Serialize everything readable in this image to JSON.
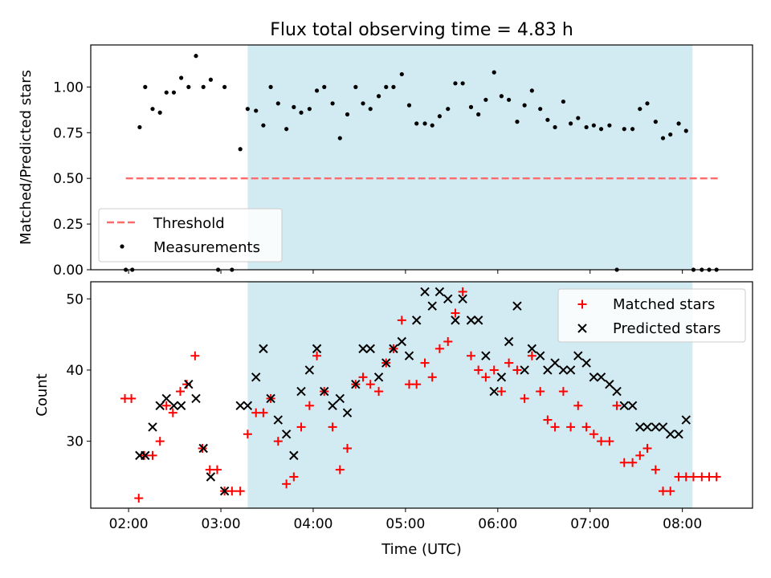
{
  "chart_data": {
    "type": "scatter",
    "title": "Flux total observing time = 4.83 h",
    "xlabel": "Time (UTC)",
    "colors": {
      "shade": "#add8e6",
      "threshold": "#ff6b6b",
      "measurement": "#000000",
      "matched": "#ff0000",
      "predicted": "#000000"
    },
    "x_ticks": [
      {
        "t": 2.0,
        "label": "02:00"
      },
      {
        "t": 3.0,
        "label": "03:00"
      },
      {
        "t": 4.0,
        "label": "04:00"
      },
      {
        "t": 5.0,
        "label": "05:00"
      },
      {
        "t": 6.0,
        "label": "06:00"
      },
      {
        "t": 7.0,
        "label": "07:00"
      },
      {
        "t": 8.0,
        "label": "08:00"
      }
    ],
    "xlim": [
      1.59,
      8.76
    ],
    "shaded_span": {
      "x_start": 3.29,
      "x_end": 8.11
    },
    "ratio_panel": {
      "ylabel": "Matched/Predicted stars",
      "ylim": [
        0,
        1.23
      ],
      "y_ticks": [
        "0.00",
        "0.25",
        "0.50",
        "0.75",
        "1.00"
      ],
      "y_tick_values": [
        0,
        0.25,
        0.5,
        0.75,
        1.0
      ],
      "legend": {
        "placement": "lower-left",
        "threshold_label": "Threshold",
        "measurements_label": "Measurements"
      },
      "threshold": {
        "value": 0.5,
        "x_start": 1.97,
        "x_end": 8.4
      },
      "measurements": [
        [
          1.97,
          0.0
        ],
        [
          2.04,
          0.0
        ],
        [
          2.12,
          0.78
        ],
        [
          2.18,
          1.0
        ],
        [
          2.26,
          0.88
        ],
        [
          2.34,
          0.86
        ],
        [
          2.41,
          0.97
        ],
        [
          2.49,
          0.97
        ],
        [
          2.57,
          1.05
        ],
        [
          2.65,
          1.0
        ],
        [
          2.73,
          1.17
        ],
        [
          2.81,
          1.0
        ],
        [
          2.89,
          1.04
        ],
        [
          2.97,
          0.0
        ],
        [
          3.04,
          1.0
        ],
        [
          3.12,
          0.0
        ],
        [
          3.21,
          0.66
        ],
        [
          3.29,
          0.88
        ],
        [
          3.38,
          0.87
        ],
        [
          3.46,
          0.79
        ],
        [
          3.54,
          1.0
        ],
        [
          3.62,
          0.91
        ],
        [
          3.71,
          0.77
        ],
        [
          3.79,
          0.89
        ],
        [
          3.87,
          0.86
        ],
        [
          3.96,
          0.88
        ],
        [
          4.04,
          0.98
        ],
        [
          4.12,
          1.0
        ],
        [
          4.21,
          0.91
        ],
        [
          4.29,
          0.72
        ],
        [
          4.37,
          0.85
        ],
        [
          4.46,
          1.0
        ],
        [
          4.54,
          0.91
        ],
        [
          4.62,
          0.88
        ],
        [
          4.71,
          0.95
        ],
        [
          4.79,
          1.0
        ],
        [
          4.87,
          1.0
        ],
        [
          4.96,
          1.07
        ],
        [
          5.04,
          0.9
        ],
        [
          5.12,
          0.8
        ],
        [
          5.21,
          0.8
        ],
        [
          5.29,
          0.79
        ],
        [
          5.37,
          0.84
        ],
        [
          5.46,
          0.88
        ],
        [
          5.54,
          1.02
        ],
        [
          5.62,
          1.02
        ],
        [
          5.71,
          0.89
        ],
        [
          5.79,
          0.85
        ],
        [
          5.87,
          0.93
        ],
        [
          5.96,
          1.08
        ],
        [
          6.04,
          0.95
        ],
        [
          6.12,
          0.93
        ],
        [
          6.21,
          0.81
        ],
        [
          6.29,
          0.9
        ],
        [
          6.37,
          0.98
        ],
        [
          6.46,
          0.88
        ],
        [
          6.54,
          0.82
        ],
        [
          6.62,
          0.78
        ],
        [
          6.71,
          0.92
        ],
        [
          6.79,
          0.8
        ],
        [
          6.87,
          0.83
        ],
        [
          6.96,
          0.78
        ],
        [
          7.04,
          0.79
        ],
        [
          7.12,
          0.77
        ],
        [
          7.21,
          0.79
        ],
        [
          7.29,
          0.0
        ],
        [
          7.37,
          0.77
        ],
        [
          7.46,
          0.77
        ],
        [
          7.54,
          0.88
        ],
        [
          7.62,
          0.91
        ],
        [
          7.71,
          0.81
        ],
        [
          7.79,
          0.72
        ],
        [
          7.87,
          0.74
        ],
        [
          7.96,
          0.8
        ],
        [
          8.04,
          0.76
        ],
        [
          8.12,
          0.0
        ],
        [
          8.21,
          0.0
        ],
        [
          8.29,
          0.0
        ],
        [
          8.37,
          0.0
        ]
      ]
    },
    "count_panel": {
      "ylabel": "Count",
      "ylim": [
        20.6,
        52.4
      ],
      "y_ticks": [
        "30",
        "40",
        "50"
      ],
      "y_tick_values": [
        30,
        40,
        50
      ],
      "legend": {
        "placement": "upper-right",
        "matched_label": "Matched stars",
        "predicted_label": "Predicted stars"
      },
      "matched": [
        [
          1.96,
          36
        ],
        [
          2.03,
          36
        ],
        [
          2.11,
          22
        ],
        [
          2.17,
          28
        ],
        [
          2.26,
          28
        ],
        [
          2.34,
          30
        ],
        [
          2.41,
          35
        ],
        [
          2.48,
          34
        ],
        [
          2.56,
          37
        ],
        [
          2.63,
          38
        ],
        [
          2.72,
          42
        ],
        [
          2.8,
          29
        ],
        [
          2.88,
          26
        ],
        [
          2.96,
          26
        ],
        [
          3.04,
          23
        ],
        [
          3.12,
          23
        ],
        [
          3.21,
          23
        ],
        [
          3.29,
          31
        ],
        [
          3.38,
          34
        ],
        [
          3.46,
          34
        ],
        [
          3.54,
          36
        ],
        [
          3.62,
          30
        ],
        [
          3.71,
          24
        ],
        [
          3.79,
          25
        ],
        [
          3.87,
          32
        ],
        [
          3.96,
          35
        ],
        [
          4.04,
          42
        ],
        [
          4.12,
          37
        ],
        [
          4.21,
          32
        ],
        [
          4.29,
          26
        ],
        [
          4.37,
          29
        ],
        [
          4.46,
          38
        ],
        [
          4.54,
          39
        ],
        [
          4.62,
          38
        ],
        [
          4.71,
          37
        ],
        [
          4.79,
          41
        ],
        [
          4.87,
          43
        ],
        [
          4.96,
          47
        ],
        [
          5.04,
          38
        ],
        [
          5.12,
          38
        ],
        [
          5.21,
          41
        ],
        [
          5.29,
          39
        ],
        [
          5.37,
          43
        ],
        [
          5.46,
          44
        ],
        [
          5.54,
          48
        ],
        [
          5.62,
          51
        ],
        [
          5.71,
          42
        ],
        [
          5.79,
          40
        ],
        [
          5.87,
          39
        ],
        [
          5.96,
          40
        ],
        [
          6.04,
          37
        ],
        [
          6.12,
          41
        ],
        [
          6.21,
          40
        ],
        [
          6.29,
          36
        ],
        [
          6.37,
          42
        ],
        [
          6.46,
          37
        ],
        [
          6.54,
          33
        ],
        [
          6.62,
          32
        ],
        [
          6.71,
          37
        ],
        [
          6.79,
          32
        ],
        [
          6.87,
          35
        ],
        [
          6.96,
          32
        ],
        [
          7.04,
          31
        ],
        [
          7.12,
          30
        ],
        [
          7.21,
          30
        ],
        [
          7.29,
          35
        ],
        [
          7.37,
          27
        ],
        [
          7.46,
          27
        ],
        [
          7.54,
          28
        ],
        [
          7.62,
          29
        ],
        [
          7.71,
          26
        ],
        [
          7.79,
          23
        ],
        [
          7.87,
          23
        ],
        [
          7.96,
          25
        ],
        [
          8.04,
          25
        ],
        [
          8.12,
          25
        ],
        [
          8.21,
          25
        ],
        [
          8.29,
          25
        ],
        [
          8.37,
          25
        ]
      ],
      "predicted": [
        [
          2.12,
          28
        ],
        [
          2.18,
          28
        ],
        [
          2.26,
          32
        ],
        [
          2.34,
          35
        ],
        [
          2.41,
          36
        ],
        [
          2.49,
          35
        ],
        [
          2.57,
          35
        ],
        [
          2.65,
          38
        ],
        [
          2.73,
          36
        ],
        [
          2.81,
          29
        ],
        [
          2.89,
          25
        ],
        [
          3.04,
          23
        ],
        [
          3.21,
          35
        ],
        [
          3.29,
          35
        ],
        [
          3.38,
          39
        ],
        [
          3.46,
          43
        ],
        [
          3.54,
          36
        ],
        [
          3.62,
          33
        ],
        [
          3.71,
          31
        ],
        [
          3.79,
          28
        ],
        [
          3.87,
          37
        ],
        [
          3.96,
          40
        ],
        [
          4.04,
          43
        ],
        [
          4.12,
          37
        ],
        [
          4.21,
          35
        ],
        [
          4.29,
          36
        ],
        [
          4.37,
          34
        ],
        [
          4.46,
          38
        ],
        [
          4.54,
          43
        ],
        [
          4.62,
          43
        ],
        [
          4.71,
          39
        ],
        [
          4.79,
          41
        ],
        [
          4.87,
          43
        ],
        [
          4.96,
          44
        ],
        [
          5.04,
          42
        ],
        [
          5.12,
          47
        ],
        [
          5.21,
          51
        ],
        [
          5.29,
          49
        ],
        [
          5.37,
          51
        ],
        [
          5.46,
          50
        ],
        [
          5.54,
          47
        ],
        [
          5.62,
          50
        ],
        [
          5.71,
          47
        ],
        [
          5.79,
          47
        ],
        [
          5.87,
          42
        ],
        [
          5.96,
          37
        ],
        [
          6.04,
          39
        ],
        [
          6.12,
          44
        ],
        [
          6.21,
          49
        ],
        [
          6.29,
          40
        ],
        [
          6.37,
          43
        ],
        [
          6.46,
          42
        ],
        [
          6.54,
          40
        ],
        [
          6.62,
          41
        ],
        [
          6.71,
          40
        ],
        [
          6.79,
          40
        ],
        [
          6.87,
          42
        ],
        [
          6.96,
          41
        ],
        [
          7.04,
          39
        ],
        [
          7.12,
          39
        ],
        [
          7.21,
          38
        ],
        [
          7.29,
          37
        ],
        [
          7.37,
          35
        ],
        [
          7.46,
          35
        ],
        [
          7.54,
          32
        ],
        [
          7.62,
          32
        ],
        [
          7.71,
          32
        ],
        [
          7.79,
          32
        ],
        [
          7.87,
          31
        ],
        [
          7.96,
          31
        ],
        [
          8.04,
          33
        ]
      ]
    }
  }
}
